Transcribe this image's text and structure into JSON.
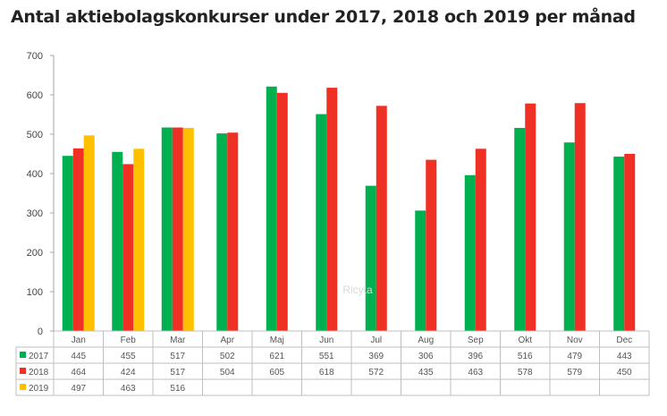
{
  "chart_data": {
    "type": "bar",
    "title": "Antal aktiebolagskonkurser under 2017, 2018 och 2019 per månad",
    "xlabel": "",
    "ylabel": "",
    "ylim": [
      0,
      700
    ],
    "yticks": [
      "0",
      "100",
      "200",
      "300",
      "400",
      "500",
      "600",
      "700"
    ],
    "grid": false,
    "legend": "bottom-left (data table)",
    "categories": [
      "Jan",
      "Feb",
      "Mar",
      "Apr",
      "Maj",
      "Jun",
      "Jul",
      "Aug",
      "Sep",
      "Okt",
      "Nov",
      "Dec"
    ],
    "series": [
      {
        "name": "2017",
        "color": "#00b050",
        "values": [
          445,
          455,
          517,
          502,
          621,
          551,
          369,
          306,
          396,
          516,
          479,
          443
        ]
      },
      {
        "name": "2018",
        "color": "#ee3124",
        "values": [
          464,
          424,
          517,
          504,
          605,
          618,
          572,
          435,
          463,
          578,
          579,
          450
        ]
      },
      {
        "name": "2019",
        "color": "#ffc000",
        "values": [
          497,
          463,
          516,
          null,
          null,
          null,
          null,
          null,
          null,
          null,
          null,
          null
        ]
      }
    ],
    "watermark": "Ricyta"
  }
}
